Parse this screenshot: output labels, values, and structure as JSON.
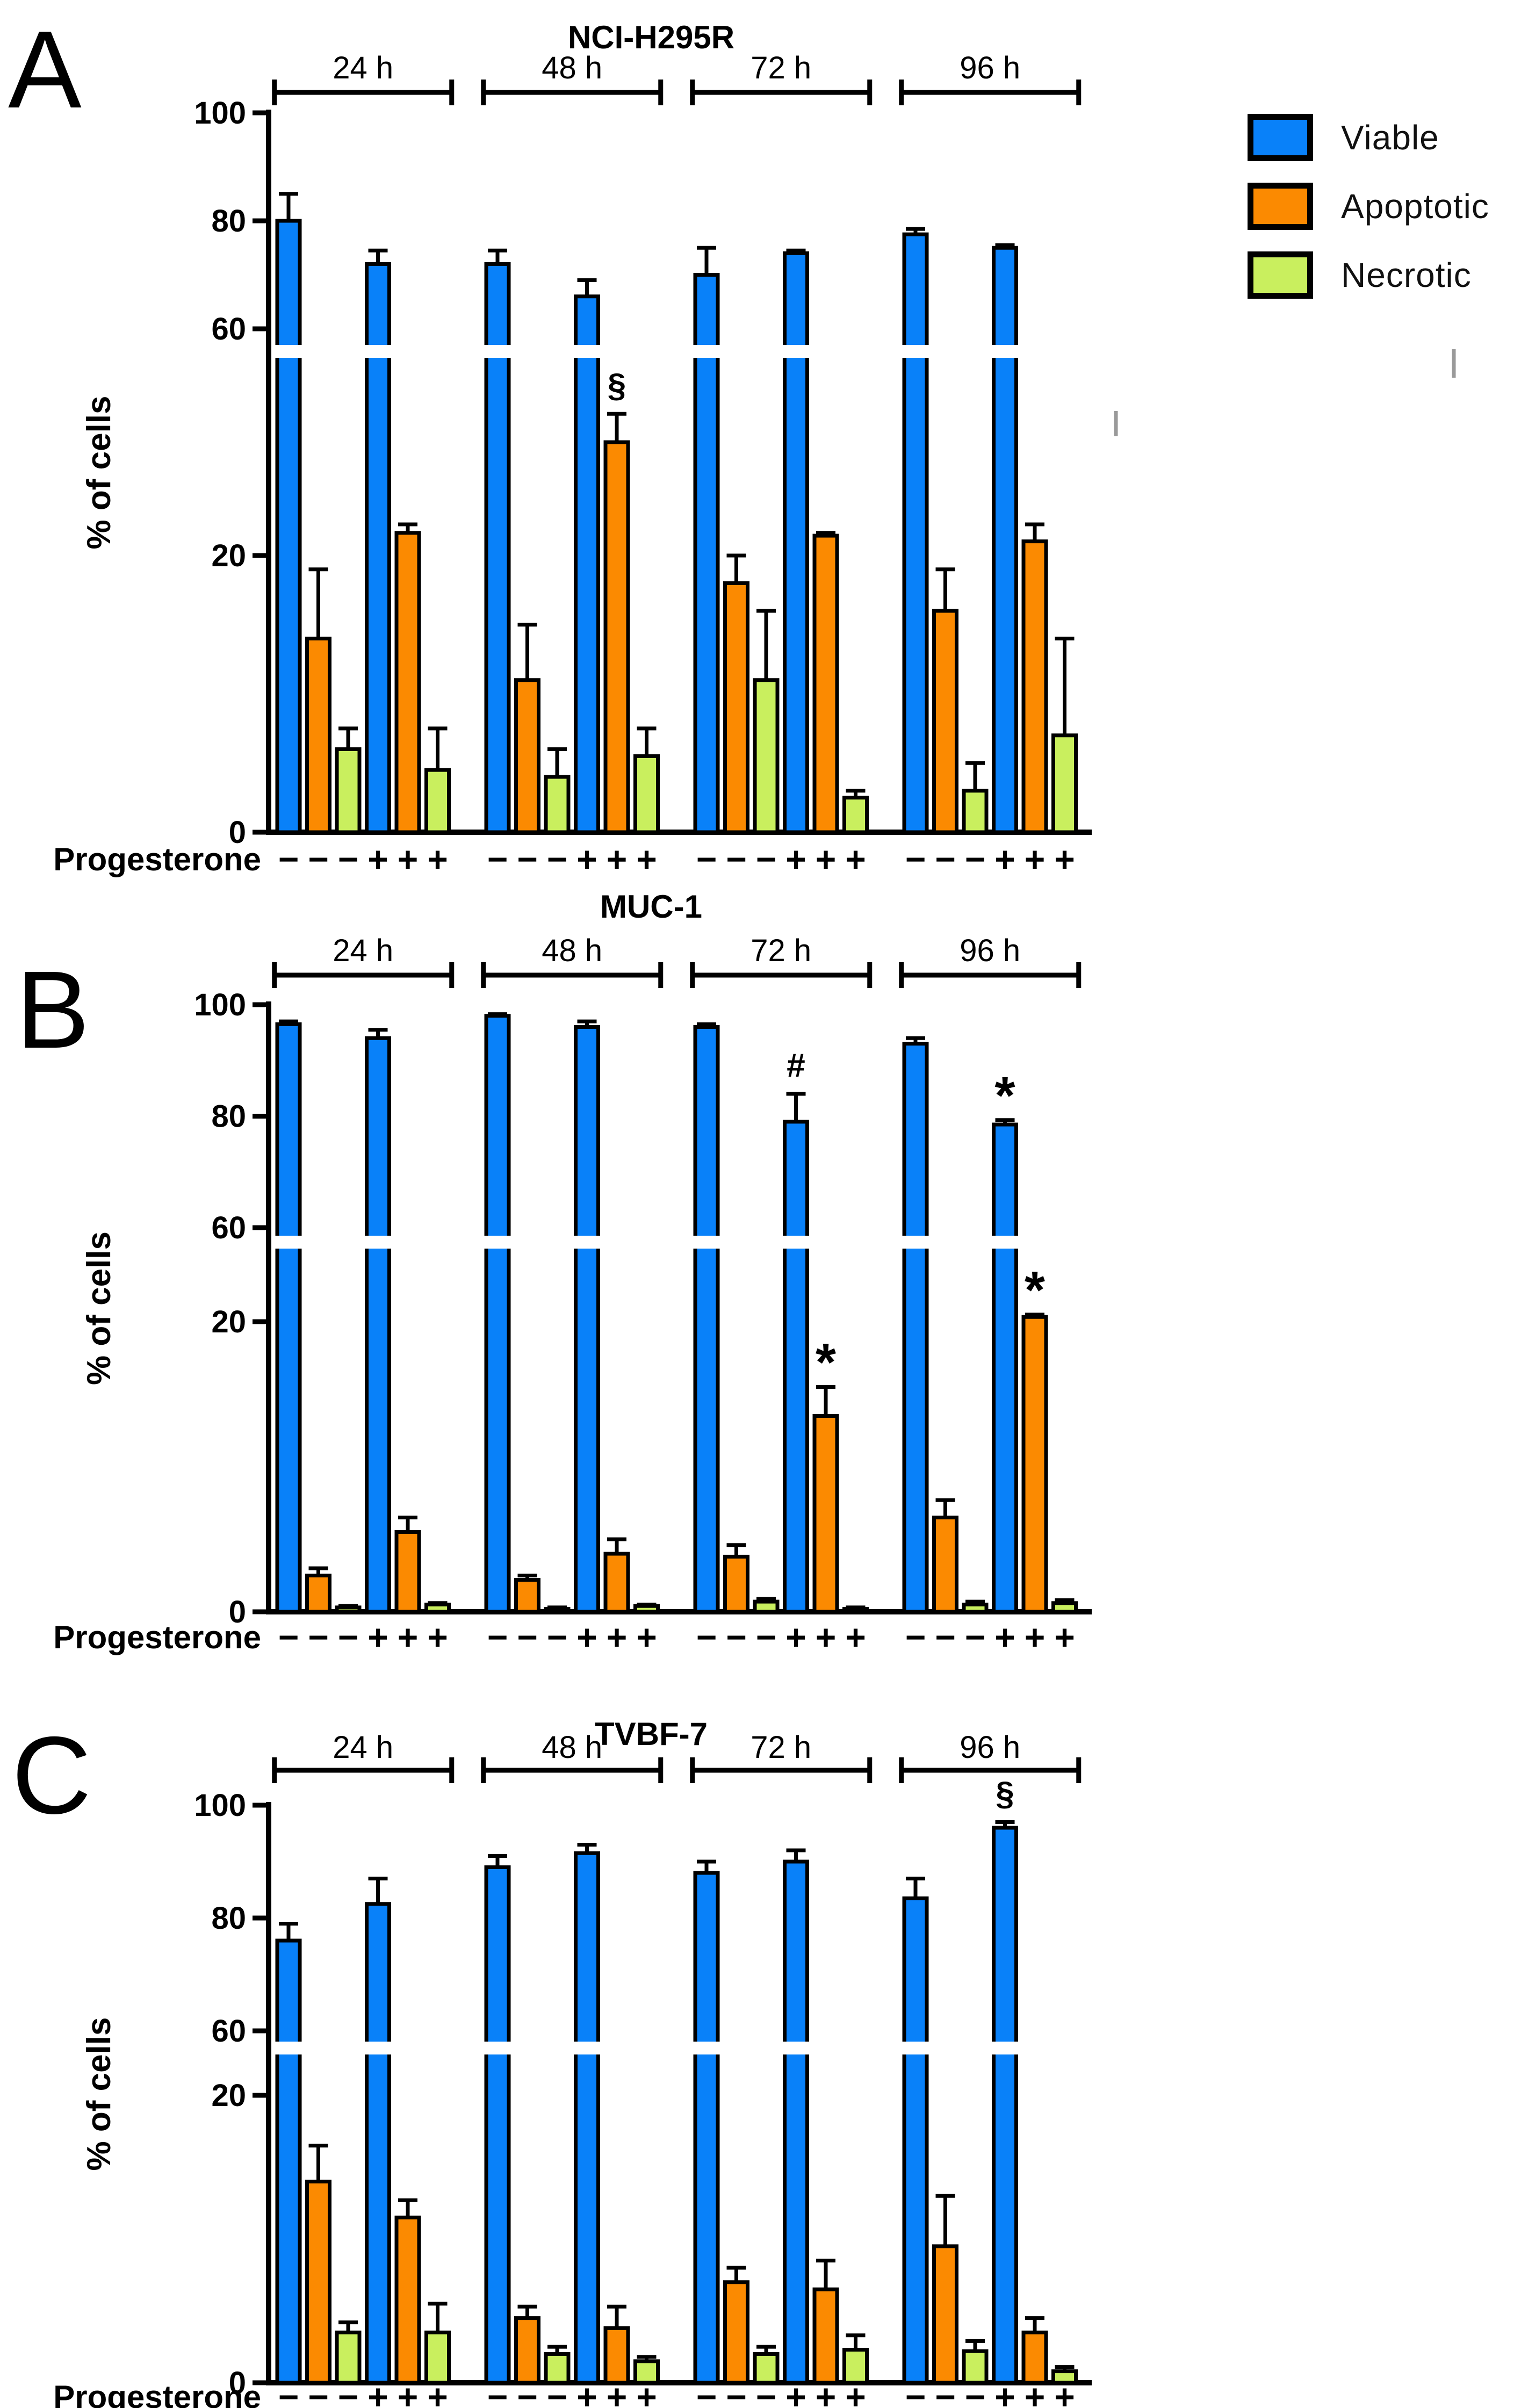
{
  "figure": {
    "progesterone_label": "Progesterone",
    "minus_symbol": "−",
    "plus_symbol": "+",
    "ylabel": "% of cells",
    "legend": {
      "position": "top-right",
      "items": [
        {
          "label": "Viable",
          "color": "#0981f9"
        },
        {
          "label": "Apoptotic",
          "color": "#fb8a01"
        },
        {
          "label": "Necrotic",
          "color": "#c9ef5e"
        }
      ]
    }
  },
  "chart_data": [
    {
      "type": "bar",
      "panel_letter": "A",
      "title": "NCI-H295R",
      "ylabel": "% of cells",
      "yticks": [
        0,
        20,
        60,
        80,
        100
      ],
      "ylim": [
        0,
        100
      ],
      "axis_break_between": [
        20,
        60
      ],
      "grid": false,
      "series_names": [
        "Viable",
        "Apoptotic",
        "Necrotic"
      ],
      "progesterone_row": [
        "-",
        "-",
        "-",
        "+",
        "+",
        "+"
      ],
      "groups": [
        {
          "time": "24 h",
          "minus": {
            "viable": [
              80,
              5
            ],
            "apoptotic": [
              14,
              5
            ],
            "necrotic": [
              6,
              1.5
            ]
          },
          "plus": {
            "viable": [
              72,
              2.5
            ],
            "apoptotic": [
              24,
              1.5
            ],
            "necrotic": [
              4.5,
              3
            ]
          }
        },
        {
          "time": "48 h",
          "minus": {
            "viable": [
              72,
              2.5
            ],
            "apoptotic": [
              11,
              4
            ],
            "necrotic": [
              4,
              2
            ]
          },
          "plus": {
            "viable": [
              66,
              3
            ],
            "apoptotic": [
              40,
              5,
              "§"
            ],
            "necrotic": [
              5.5,
              2
            ]
          }
        },
        {
          "time": "72 h",
          "minus": {
            "viable": [
              70,
              5
            ],
            "apoptotic": [
              18,
              2
            ],
            "necrotic": [
              11,
              5
            ]
          },
          "plus": {
            "viable": [
              74,
              0.5
            ],
            "apoptotic": [
              23.5,
              0.5
            ],
            "necrotic": [
              2.5,
              0.5
            ]
          }
        },
        {
          "time": "96 h",
          "minus": {
            "viable": [
              77.5,
              1
            ],
            "apoptotic": [
              16,
              3
            ],
            "necrotic": [
              3,
              2
            ]
          },
          "plus": {
            "viable": [
              75,
              0.5
            ],
            "apoptotic": [
              22.5,
              3
            ],
            "necrotic": [
              7,
              7
            ]
          }
        }
      ]
    },
    {
      "type": "bar",
      "panel_letter": "B",
      "title": "MUC-1",
      "ylabel": "% of cells",
      "yticks": [
        0,
        20,
        60,
        80,
        100
      ],
      "ylim": [
        0,
        100
      ],
      "axis_break_between": [
        20,
        60
      ],
      "grid": false,
      "series_names": [
        "Viable",
        "Apoptotic",
        "Necrotic"
      ],
      "progesterone_row": [
        "-",
        "-",
        "-",
        "+",
        "+",
        "+"
      ],
      "groups": [
        {
          "time": "24 h",
          "minus": {
            "viable": [
              96.5,
              0.5
            ],
            "apoptotic": [
              2.5,
              0.5
            ],
            "necrotic": [
              0.3,
              0.1
            ]
          },
          "plus": {
            "viable": [
              94,
              1.5
            ],
            "apoptotic": [
              5.5,
              1
            ],
            "necrotic": [
              0.5,
              0.1
            ]
          }
        },
        {
          "time": "48 h",
          "minus": {
            "viable": [
              98,
              0.3
            ],
            "apoptotic": [
              2.2,
              0.3
            ],
            "necrotic": [
              0.2,
              0.1
            ]
          },
          "plus": {
            "viable": [
              96,
              1
            ],
            "apoptotic": [
              4,
              1
            ],
            "necrotic": [
              0.4,
              0.1
            ]
          }
        },
        {
          "time": "72 h",
          "minus": {
            "viable": [
              96,
              0.5
            ],
            "apoptotic": [
              3.8,
              0.8
            ],
            "necrotic": [
              0.7,
              0.2
            ]
          },
          "plus": {
            "viable": [
              79,
              5,
              "#"
            ],
            "apoptotic": [
              13.5,
              2,
              "*"
            ],
            "necrotic": [
              0.2,
              0.1
            ]
          }
        },
        {
          "time": "96 h",
          "minus": {
            "viable": [
              93,
              1
            ],
            "apoptotic": [
              6.5,
              1.2
            ],
            "necrotic": [
              0.5,
              0.2
            ]
          },
          "plus": {
            "viable": [
              78.5,
              0.8,
              "*"
            ],
            "apoptotic": [
              22,
              1,
              "*"
            ],
            "necrotic": [
              0.6,
              0.2
            ]
          }
        }
      ]
    },
    {
      "type": "bar",
      "panel_letter": "C",
      "title": "TVBF-7",
      "ylabel": "% of cells",
      "yticks": [
        0,
        20,
        60,
        80,
        100
      ],
      "ylim": [
        0,
        100
      ],
      "axis_break_between": [
        20,
        60
      ],
      "grid": false,
      "series_names": [
        "Viable",
        "Apoptotic",
        "Necrotic"
      ],
      "progesterone_row": [
        "-",
        "-",
        "-",
        "+",
        "+",
        "+"
      ],
      "groups": [
        {
          "time": "24 h",
          "minus": {
            "viable": [
              76,
              3
            ],
            "apoptotic": [
              14,
              2.5
            ],
            "necrotic": [
              3.5,
              0.7
            ]
          },
          "plus": {
            "viable": [
              82.5,
              4.5
            ],
            "apoptotic": [
              11.5,
              1.2
            ],
            "necrotic": [
              3.5,
              2
            ]
          }
        },
        {
          "time": "48 h",
          "minus": {
            "viable": [
              89,
              2
            ],
            "apoptotic": [
              4.5,
              0.8
            ],
            "necrotic": [
              2,
              0.5
            ]
          },
          "plus": {
            "viable": [
              91.5,
              1.5
            ],
            "apoptotic": [
              3.8,
              1.5
            ],
            "necrotic": [
              1.5,
              0.3
            ]
          }
        },
        {
          "time": "72 h",
          "minus": {
            "viable": [
              88,
              2
            ],
            "apoptotic": [
              7,
              1
            ],
            "necrotic": [
              2,
              0.5
            ]
          },
          "plus": {
            "viable": [
              90,
              2
            ],
            "apoptotic": [
              6.5,
              2
            ],
            "necrotic": [
              2.3,
              1
            ]
          }
        },
        {
          "time": "96 h",
          "minus": {
            "viable": [
              83.5,
              3.5
            ],
            "apoptotic": [
              9.5,
              3.5
            ],
            "necrotic": [
              2.2,
              0.7
            ]
          },
          "plus": {
            "viable": [
              96,
              1,
              "§"
            ],
            "apoptotic": [
              3.5,
              1
            ],
            "necrotic": [
              0.8,
              0.3
            ]
          }
        }
      ]
    }
  ]
}
